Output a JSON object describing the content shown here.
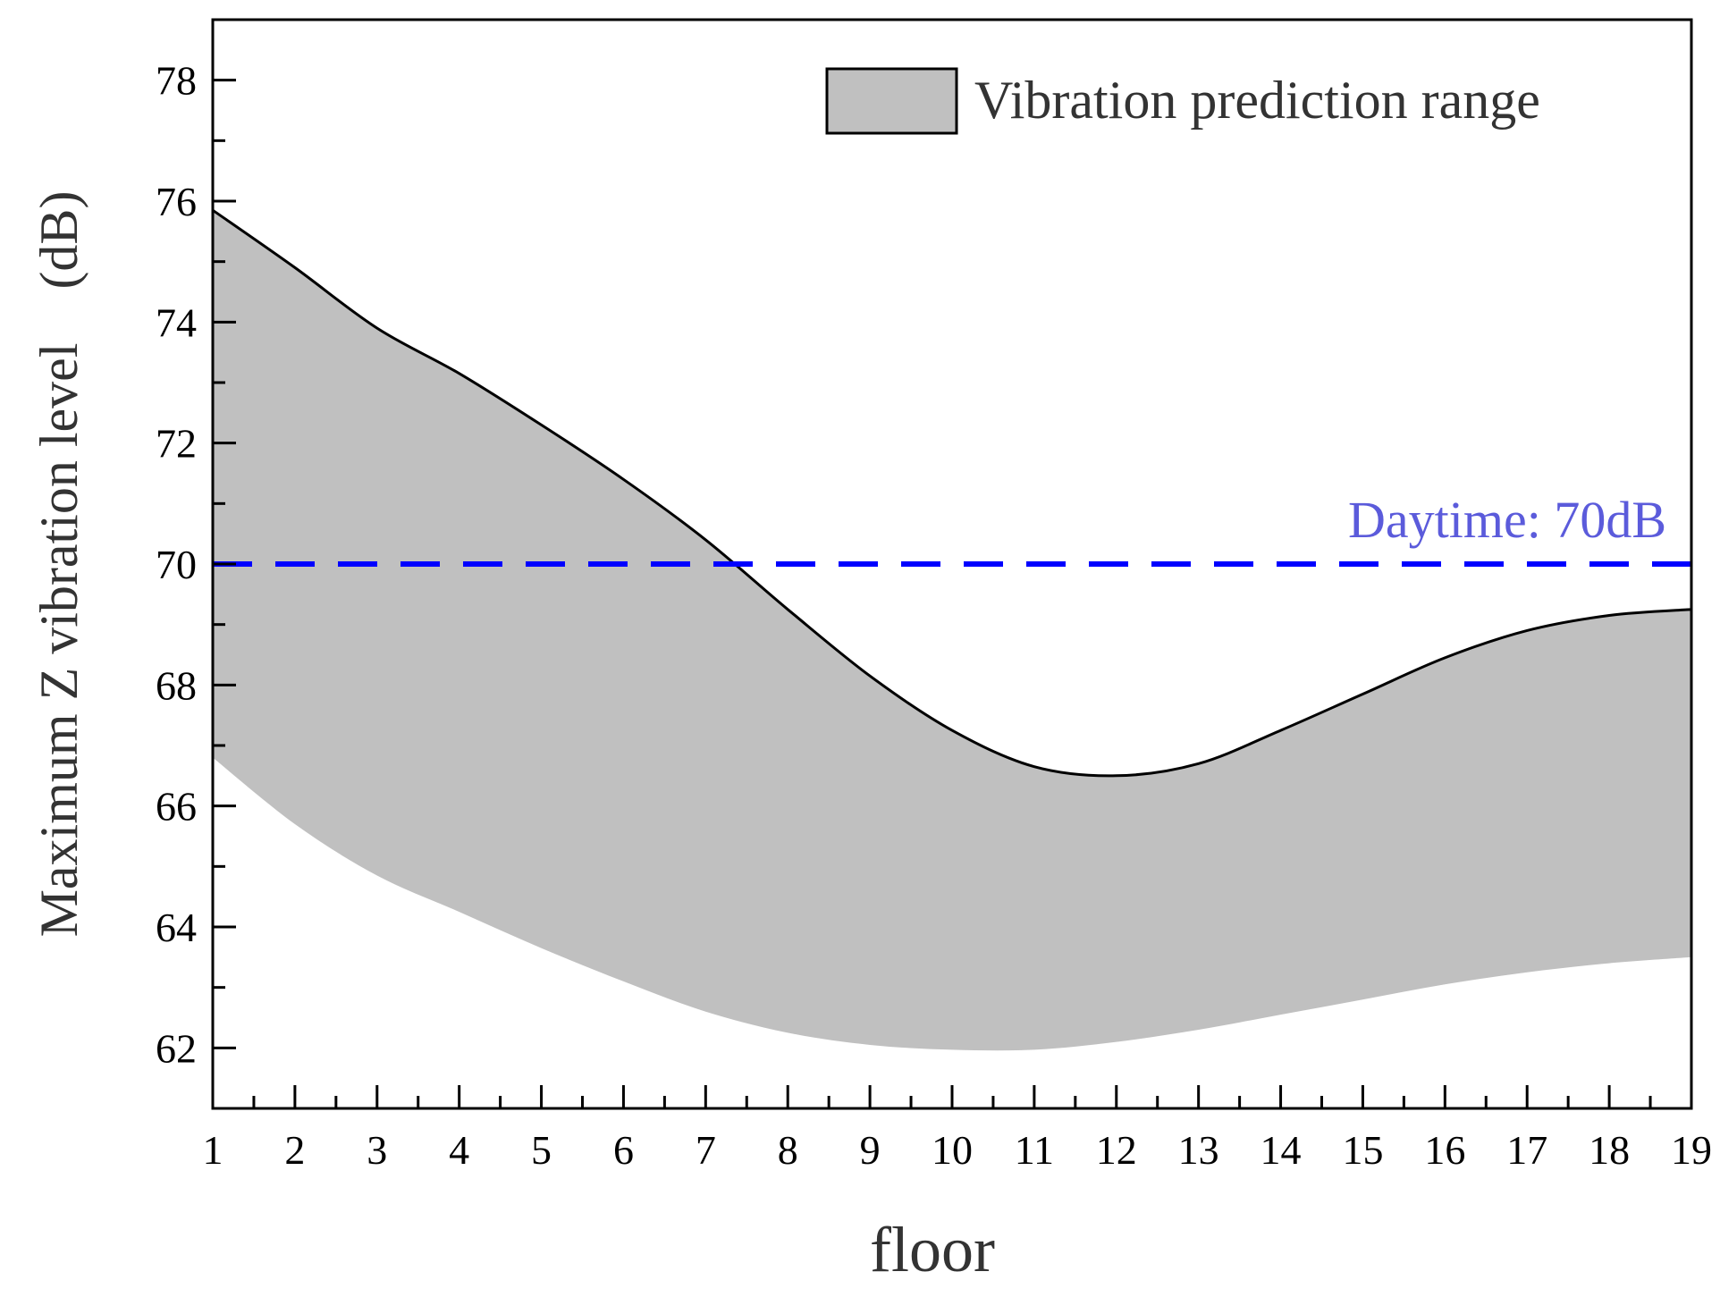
{
  "chart_data": {
    "type": "area",
    "title": "",
    "xlabel": "floor",
    "ylabel": "Maximum Z vibration level　(dB)",
    "xlim": [
      1,
      19
    ],
    "ylim": [
      61,
      79
    ],
    "x_ticks": [
      1,
      2,
      3,
      4,
      5,
      6,
      7,
      8,
      9,
      10,
      11,
      12,
      13,
      14,
      15,
      16,
      17,
      18,
      19
    ],
    "y_ticks": [
      62,
      64,
      66,
      68,
      70,
      72,
      74,
      76,
      78
    ],
    "grid": false,
    "legend": {
      "position": "top-right",
      "entries": [
        "Vibration prediction range"
      ]
    },
    "series": [
      {
        "name": "Vibration prediction range",
        "x": [
          1,
          2,
          3,
          4,
          5,
          6,
          7,
          8,
          9,
          10,
          11,
          12,
          13,
          14,
          15,
          16,
          17,
          18,
          19
        ],
        "upper": [
          75.85,
          74.9,
          73.9,
          73.15,
          72.3,
          71.4,
          70.4,
          69.25,
          68.15,
          67.25,
          66.65,
          66.5,
          66.7,
          67.25,
          67.85,
          68.45,
          68.9,
          69.15,
          69.25
        ],
        "lower": [
          66.8,
          65.7,
          64.85,
          64.25,
          63.65,
          63.1,
          62.6,
          62.25,
          62.05,
          61.97,
          61.97,
          62.1,
          62.3,
          62.55,
          62.8,
          63.05,
          63.25,
          63.4,
          63.5
        ],
        "fill_color": "#c0c0c0",
        "edge_color": "#000000"
      }
    ],
    "reference_lines": [
      {
        "label": "Daytime: 70dB",
        "y": 70,
        "color": "#0000ff",
        "style": "dashed",
        "label_color": "#5b5bdb"
      }
    ]
  }
}
